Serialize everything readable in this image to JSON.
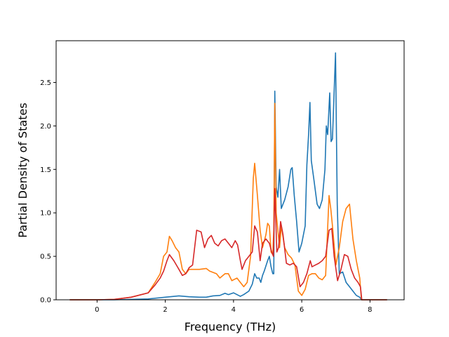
{
  "chart_data": {
    "type": "line",
    "title": "",
    "xlabel": "Frequency (THz)",
    "ylabel": "Partial Density of States",
    "xlim": [
      -1.2,
      9.0
    ],
    "ylim": [
      0.0,
      2.98
    ],
    "xticks": [
      0,
      2,
      4,
      6,
      8
    ],
    "yticks": [
      0.0,
      0.5,
      1.0,
      1.5,
      2.0,
      2.5
    ],
    "xtick_labels": [
      "0",
      "2",
      "4",
      "6",
      "8"
    ],
    "ytick_labels": [
      "0.0",
      "0.5",
      "1.0",
      "1.5",
      "2.0",
      "2.5"
    ],
    "grid": false,
    "legend": "none",
    "series": [
      {
        "color": "#1f77b4",
        "points": [
          [
            -0.8,
            0
          ],
          [
            0,
            0
          ],
          [
            0.5,
            0
          ],
          [
            1.0,
            0.005
          ],
          [
            1.5,
            0.01
          ],
          [
            2.0,
            0.03
          ],
          [
            2.4,
            0.045
          ],
          [
            2.7,
            0.035
          ],
          [
            3.0,
            0.03
          ],
          [
            3.2,
            0.03
          ],
          [
            3.4,
            0.045
          ],
          [
            3.6,
            0.05
          ],
          [
            3.75,
            0.075
          ],
          [
            3.85,
            0.06
          ],
          [
            4.0,
            0.08
          ],
          [
            4.1,
            0.06
          ],
          [
            4.2,
            0.04
          ],
          [
            4.3,
            0.06
          ],
          [
            4.45,
            0.1
          ],
          [
            4.55,
            0.18
          ],
          [
            4.62,
            0.3
          ],
          [
            4.68,
            0.25
          ],
          [
            4.75,
            0.25
          ],
          [
            4.8,
            0.2
          ],
          [
            4.85,
            0.28
          ],
          [
            4.9,
            0.33
          ],
          [
            5.0,
            0.45
          ],
          [
            5.05,
            0.5
          ],
          [
            5.1,
            0.38
          ],
          [
            5.15,
            0.3
          ],
          [
            5.18,
            0.3
          ],
          [
            5.21,
            2.4
          ],
          [
            5.25,
            1.3
          ],
          [
            5.3,
            1.18
          ],
          [
            5.35,
            1.5
          ],
          [
            5.4,
            1.05
          ],
          [
            5.5,
            1.15
          ],
          [
            5.6,
            1.3
          ],
          [
            5.68,
            1.5
          ],
          [
            5.72,
            1.52
          ],
          [
            5.78,
            1.2
          ],
          [
            5.85,
            0.9
          ],
          [
            5.92,
            0.55
          ],
          [
            6.0,
            0.65
          ],
          [
            6.1,
            0.85
          ],
          [
            6.15,
            1.55
          ],
          [
            6.2,
            1.9
          ],
          [
            6.24,
            2.27
          ],
          [
            6.28,
            1.6
          ],
          [
            6.35,
            1.4
          ],
          [
            6.45,
            1.1
          ],
          [
            6.52,
            1.05
          ],
          [
            6.6,
            1.15
          ],
          [
            6.68,
            1.5
          ],
          [
            6.72,
            2.0
          ],
          [
            6.76,
            1.9
          ],
          [
            6.82,
            2.38
          ],
          [
            6.86,
            1.82
          ],
          [
            6.9,
            1.85
          ],
          [
            6.95,
            2.4
          ],
          [
            6.99,
            2.84
          ],
          [
            7.04,
            1.1
          ],
          [
            7.1,
            0.3
          ],
          [
            7.2,
            0.32
          ],
          [
            7.3,
            0.2
          ],
          [
            7.4,
            0.15
          ],
          [
            7.5,
            0.1
          ],
          [
            7.6,
            0.05
          ],
          [
            7.7,
            0.03
          ],
          [
            7.75,
            0
          ],
          [
            8.0,
            0
          ],
          [
            8.5,
            0
          ]
        ]
      },
      {
        "color": "#ff7f0e",
        "points": [
          [
            -0.8,
            0
          ],
          [
            0,
            0
          ],
          [
            0.5,
            0.005
          ],
          [
            1.0,
            0.03
          ],
          [
            1.5,
            0.08
          ],
          [
            1.7,
            0.2
          ],
          [
            1.85,
            0.3
          ],
          [
            1.95,
            0.5
          ],
          [
            2.05,
            0.55
          ],
          [
            2.12,
            0.73
          ],
          [
            2.2,
            0.68
          ],
          [
            2.3,
            0.6
          ],
          [
            2.4,
            0.55
          ],
          [
            2.5,
            0.35
          ],
          [
            2.6,
            0.3
          ],
          [
            2.7,
            0.35
          ],
          [
            2.85,
            0.35
          ],
          [
            3.0,
            0.35
          ],
          [
            3.2,
            0.36
          ],
          [
            3.3,
            0.33
          ],
          [
            3.5,
            0.3
          ],
          [
            3.6,
            0.25
          ],
          [
            3.75,
            0.3
          ],
          [
            3.85,
            0.3
          ],
          [
            3.95,
            0.22
          ],
          [
            4.1,
            0.25
          ],
          [
            4.2,
            0.2
          ],
          [
            4.3,
            0.15
          ],
          [
            4.4,
            0.2
          ],
          [
            4.5,
            0.5
          ],
          [
            4.58,
            1.4
          ],
          [
            4.62,
            1.57
          ],
          [
            4.7,
            1.2
          ],
          [
            4.78,
            0.8
          ],
          [
            4.85,
            0.6
          ],
          [
            4.95,
            0.75
          ],
          [
            5.0,
            0.88
          ],
          [
            5.05,
            0.85
          ],
          [
            5.1,
            0.55
          ],
          [
            5.15,
            0.52
          ],
          [
            5.18,
            0.8
          ],
          [
            5.21,
            2.26
          ],
          [
            5.25,
            1.0
          ],
          [
            5.3,
            0.8
          ],
          [
            5.35,
            0.6
          ],
          [
            5.4,
            0.85
          ],
          [
            5.5,
            0.6
          ],
          [
            5.6,
            0.52
          ],
          [
            5.7,
            0.48
          ],
          [
            5.8,
            0.4
          ],
          [
            5.9,
            0.1
          ],
          [
            6.0,
            0.05
          ],
          [
            6.1,
            0.12
          ],
          [
            6.2,
            0.28
          ],
          [
            6.3,
            0.3
          ],
          [
            6.4,
            0.3
          ],
          [
            6.5,
            0.25
          ],
          [
            6.6,
            0.23
          ],
          [
            6.7,
            0.28
          ],
          [
            6.8,
            1.2
          ],
          [
            6.85,
            1.05
          ],
          [
            6.9,
            0.85
          ],
          [
            7.0,
            0.4
          ],
          [
            7.1,
            0.6
          ],
          [
            7.2,
            0.9
          ],
          [
            7.3,
            1.05
          ],
          [
            7.4,
            1.1
          ],
          [
            7.5,
            0.7
          ],
          [
            7.6,
            0.45
          ],
          [
            7.7,
            0.25
          ],
          [
            7.75,
            0
          ],
          [
            8.0,
            0
          ],
          [
            8.5,
            0
          ]
        ]
      },
      {
        "color": "#d62728",
        "points": [
          [
            -0.8,
            0
          ],
          [
            0,
            0
          ],
          [
            0.5,
            0.005
          ],
          [
            1.0,
            0.03
          ],
          [
            1.5,
            0.08
          ],
          [
            1.7,
            0.17
          ],
          [
            1.85,
            0.25
          ],
          [
            1.95,
            0.33
          ],
          [
            2.05,
            0.45
          ],
          [
            2.12,
            0.52
          ],
          [
            2.25,
            0.45
          ],
          [
            2.4,
            0.35
          ],
          [
            2.5,
            0.28
          ],
          [
            2.6,
            0.3
          ],
          [
            2.7,
            0.37
          ],
          [
            2.8,
            0.4
          ],
          [
            2.92,
            0.8
          ],
          [
            3.05,
            0.78
          ],
          [
            3.15,
            0.6
          ],
          [
            3.25,
            0.7
          ],
          [
            3.35,
            0.74
          ],
          [
            3.45,
            0.65
          ],
          [
            3.55,
            0.62
          ],
          [
            3.65,
            0.68
          ],
          [
            3.75,
            0.7
          ],
          [
            3.85,
            0.65
          ],
          [
            3.95,
            0.6
          ],
          [
            4.05,
            0.68
          ],
          [
            4.12,
            0.63
          ],
          [
            4.2,
            0.45
          ],
          [
            4.25,
            0.35
          ],
          [
            4.35,
            0.45
          ],
          [
            4.45,
            0.5
          ],
          [
            4.55,
            0.55
          ],
          [
            4.62,
            0.85
          ],
          [
            4.7,
            0.78
          ],
          [
            4.78,
            0.45
          ],
          [
            4.85,
            0.65
          ],
          [
            4.95,
            0.7
          ],
          [
            5.05,
            0.65
          ],
          [
            5.12,
            0.55
          ],
          [
            5.17,
            0.5
          ],
          [
            5.21,
            1.28
          ],
          [
            5.27,
            0.55
          ],
          [
            5.32,
            0.6
          ],
          [
            5.38,
            0.9
          ],
          [
            5.45,
            0.75
          ],
          [
            5.55,
            0.42
          ],
          [
            5.65,
            0.4
          ],
          [
            5.75,
            0.42
          ],
          [
            5.85,
            0.38
          ],
          [
            5.95,
            0.15
          ],
          [
            6.05,
            0.2
          ],
          [
            6.15,
            0.3
          ],
          [
            6.25,
            0.45
          ],
          [
            6.3,
            0.38
          ],
          [
            6.4,
            0.4
          ],
          [
            6.5,
            0.42
          ],
          [
            6.6,
            0.45
          ],
          [
            6.7,
            0.5
          ],
          [
            6.8,
            0.8
          ],
          [
            6.88,
            0.82
          ],
          [
            6.95,
            0.5
          ],
          [
            7.05,
            0.22
          ],
          [
            7.15,
            0.35
          ],
          [
            7.25,
            0.52
          ],
          [
            7.35,
            0.5
          ],
          [
            7.45,
            0.35
          ],
          [
            7.55,
            0.25
          ],
          [
            7.65,
            0.2
          ],
          [
            7.72,
            0.15
          ],
          [
            7.76,
            0
          ],
          [
            8.0,
            0
          ],
          [
            8.5,
            0
          ]
        ]
      }
    ]
  }
}
